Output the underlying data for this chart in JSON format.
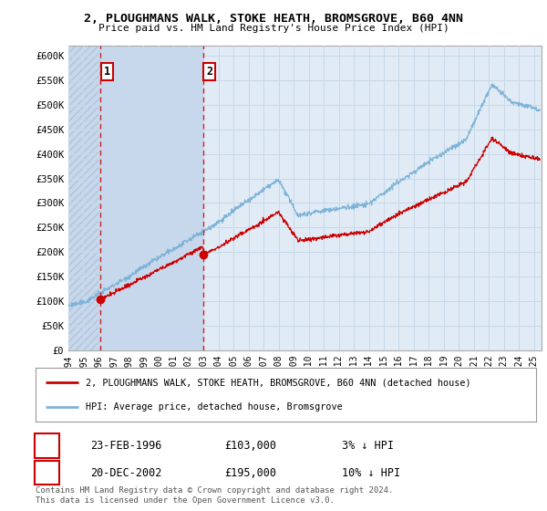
{
  "title_line1": "2, PLOUGHMANS WALK, STOKE HEATH, BROMSGROVE, B60 4NN",
  "title_line2": "Price paid vs. HM Land Registry's House Price Index (HPI)",
  "ylabel_values": [
    "£0",
    "£50K",
    "£100K",
    "£150K",
    "£200K",
    "£250K",
    "£300K",
    "£350K",
    "£400K",
    "£450K",
    "£500K",
    "£550K",
    "£600K"
  ],
  "ylim": [
    0,
    620000
  ],
  "yticks": [
    0,
    50000,
    100000,
    150000,
    200000,
    250000,
    300000,
    350000,
    400000,
    450000,
    500000,
    550000,
    600000
  ],
  "xmin": 1994.0,
  "xmax": 2025.5,
  "xtick_years": [
    1994,
    1995,
    1996,
    1997,
    1998,
    1999,
    2000,
    2001,
    2002,
    2003,
    2004,
    2005,
    2006,
    2007,
    2008,
    2009,
    2010,
    2011,
    2012,
    2013,
    2014,
    2015,
    2016,
    2017,
    2018,
    2019,
    2020,
    2021,
    2022,
    2023,
    2024,
    2025
  ],
  "hpi_color": "#7EB3D8",
  "sale_color": "#CC0000",
  "grid_color": "#C8D8E8",
  "bg_color": "#E0EBF5",
  "hatch_bg_color": "#C8D8EC",
  "sale1_x": 1996.14,
  "sale1_y": 103000,
  "sale1_label": "1",
  "sale1_date": "23-FEB-1996",
  "sale1_price": "£103,000",
  "sale1_hpi": "3% ↓ HPI",
  "sale2_x": 2002.97,
  "sale2_y": 195000,
  "sale2_label": "2",
  "sale2_date": "20-DEC-2002",
  "sale2_price": "£195,000",
  "sale2_hpi": "10% ↓ HPI",
  "legend_line1": "2, PLOUGHMANS WALK, STOKE HEATH, BROMSGROVE, B60 4NN (detached house)",
  "legend_line2": "HPI: Average price, detached house, Bromsgrove",
  "footnote": "Contains HM Land Registry data © Crown copyright and database right 2024.\nThis data is licensed under the Open Government Licence v3.0."
}
